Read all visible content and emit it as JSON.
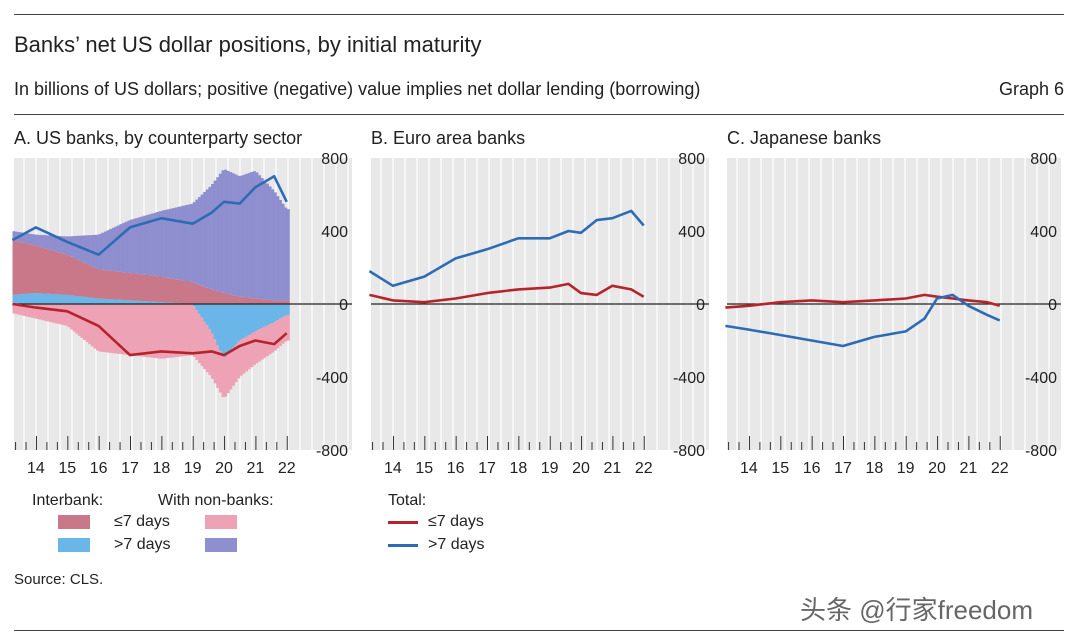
{
  "header": {
    "title": "Banks’ net US dollar positions, by initial maturity",
    "subtitle": "In billions of US dollars; positive (negative) value implies net dollar lending (borrowing)",
    "graph_number": "Graph 6"
  },
  "source": "Source: CLS.",
  "watermark": "头条 @行家freedom",
  "legend": {
    "interbank_label": "Interbank:",
    "nonbanks_label": "With non-banks:",
    "le7_label": "≤7 days",
    "gt7_label": ">7 days",
    "total_label": "Total:",
    "total_le7_label": "≤7 days",
    "total_gt7_label": ">7 days"
  },
  "colors": {
    "interbank_le7": "#c97889",
    "interbank_gt7": "#6ab6e8",
    "nonbank_le7": "#eea2b6",
    "nonbank_gt7": "#8f8fcf",
    "total_le7": "#b5242c",
    "total_gt7": "#2d6cb5",
    "panel_bg": "#e8e8e8"
  },
  "chart_data": [
    {
      "panel": "A",
      "type": "area",
      "title": "A. US banks, by counterparty sector",
      "x": [
        2013.25,
        2014,
        2015,
        2016,
        2017,
        2018,
        2019,
        2019.6,
        2020,
        2020.5,
        2021,
        2021.6,
        2022
      ],
      "xticks": [
        "14",
        "15",
        "16",
        "17",
        "18",
        "19",
        "20",
        "21",
        "22"
      ],
      "xlim": [
        2013.3,
        2022.2
      ],
      "yticks": [
        "800",
        "400",
        "0",
        "-400",
        "-800"
      ],
      "ylim": [
        -800,
        800
      ],
      "series": [
        {
          "name": "Interbank ≤7 days",
          "values": [
            300,
            260,
            220,
            160,
            150,
            140,
            120,
            80,
            60,
            40,
            30,
            20,
            20
          ]
        },
        {
          "name": "Interbank >7 days",
          "values": [
            50,
            60,
            50,
            30,
            20,
            10,
            0,
            -150,
            -300,
            -200,
            -150,
            -100,
            -60
          ]
        },
        {
          "name": "With non-banks ≤7 days",
          "values": [
            -50,
            -80,
            -120,
            -260,
            -280,
            -300,
            -280,
            -250,
            -220,
            -200,
            -180,
            -160,
            -140
          ]
        },
        {
          "name": "With non-banks >7 days",
          "values": [
            50,
            60,
            100,
            190,
            290,
            360,
            430,
            570,
            680,
            660,
            700,
            600,
            500
          ]
        },
        {
          "name": "Total ≤7 days",
          "values": [
            0,
            -20,
            -40,
            -120,
            -280,
            -260,
            -270,
            -260,
            -280,
            -230,
            -200,
            -220,
            -160
          ]
        },
        {
          "name": "Total >7 days",
          "values": [
            350,
            420,
            340,
            270,
            420,
            470,
            440,
            500,
            560,
            550,
            640,
            700,
            560
          ]
        }
      ]
    },
    {
      "panel": "B",
      "type": "line",
      "title": "B. Euro area banks",
      "x": [
        2013.25,
        2014,
        2015,
        2016,
        2017,
        2018,
        2019,
        2019.6,
        2020,
        2020.5,
        2021,
        2021.6,
        2022
      ],
      "xticks": [
        "14",
        "15",
        "16",
        "17",
        "18",
        "19",
        "20",
        "21",
        "22"
      ],
      "xlim": [
        2013.3,
        2022.2
      ],
      "yticks": [
        "800",
        "400",
        "0",
        "-400",
        "-800"
      ],
      "ylim": [
        -800,
        800
      ],
      "series": [
        {
          "name": "Total ≤7 days",
          "values": [
            50,
            20,
            10,
            30,
            60,
            80,
            90,
            110,
            60,
            50,
            100,
            80,
            40
          ]
        },
        {
          "name": "Total >7 days",
          "values": [
            180,
            100,
            150,
            250,
            300,
            360,
            360,
            400,
            390,
            460,
            470,
            510,
            430
          ]
        }
      ]
    },
    {
      "panel": "C",
      "type": "line",
      "title": "C. Japanese banks",
      "x": [
        2013.25,
        2014,
        2015,
        2016,
        2017,
        2018,
        2019,
        2019.6,
        2020,
        2020.5,
        2021,
        2021.6,
        2022
      ],
      "xticks": [
        "14",
        "15",
        "16",
        "17",
        "18",
        "19",
        "20",
        "21",
        "22"
      ],
      "xlim": [
        2013.3,
        2022.2
      ],
      "yticks": [
        "800",
        "400",
        "0",
        "-400",
        "-800"
      ],
      "ylim": [
        -800,
        800
      ],
      "series": [
        {
          "name": "Total ≤7 days",
          "values": [
            -20,
            -10,
            10,
            20,
            10,
            20,
            30,
            50,
            40,
            30,
            20,
            10,
            -10
          ]
        },
        {
          "name": "Total >7 days",
          "values": [
            -120,
            -140,
            -170,
            -200,
            -230,
            -180,
            -150,
            -80,
            30,
            50,
            -10,
            -60,
            -90
          ]
        }
      ]
    }
  ]
}
